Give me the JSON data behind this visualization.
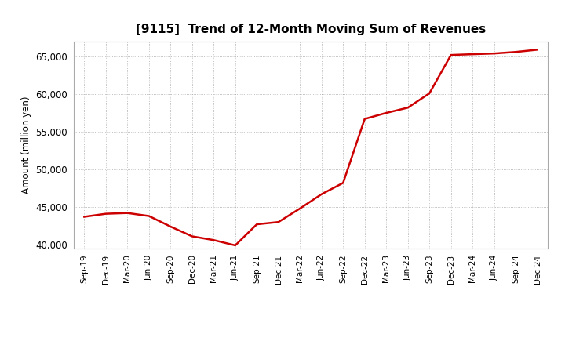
{
  "title": "[9115]  Trend of 12-Month Moving Sum of Revenues",
  "ylabel": "Amount (million yen)",
  "line_color": "#cc0000",
  "line_width": 1.8,
  "background_color": "#ffffff",
  "plot_bg_color": "#ffffff",
  "grid_color": "#999999",
  "ylim": [
    39500,
    67000
  ],
  "yticks": [
    40000,
    45000,
    50000,
    55000,
    60000,
    65000
  ],
  "x_labels": [
    "Sep-19",
    "Dec-19",
    "Mar-20",
    "Jun-20",
    "Sep-20",
    "Dec-20",
    "Mar-21",
    "Jun-21",
    "Sep-21",
    "Dec-21",
    "Mar-22",
    "Jun-22",
    "Sep-22",
    "Dec-22",
    "Mar-23",
    "Jun-23",
    "Sep-23",
    "Dec-23",
    "Mar-24",
    "Jun-24",
    "Sep-24",
    "Dec-24"
  ],
  "values": [
    43700,
    44100,
    44200,
    43800,
    42400,
    41100,
    40600,
    39900,
    42700,
    43000,
    44800,
    46700,
    48200,
    56700,
    57500,
    58200,
    60100,
    65200,
    65300,
    65400,
    65600,
    65900
  ]
}
